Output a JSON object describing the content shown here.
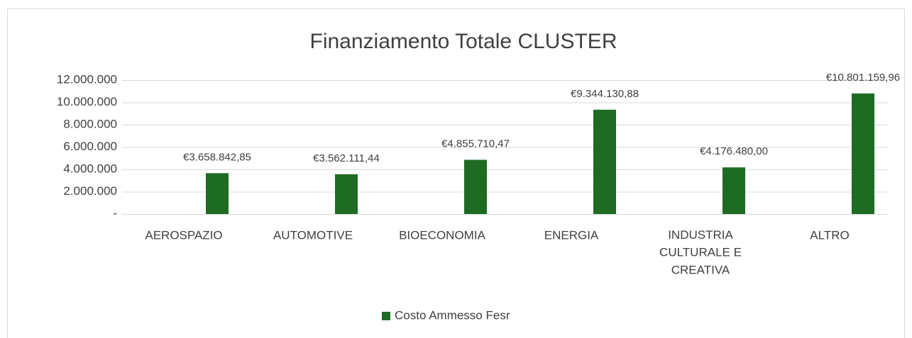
{
  "chart_data": {
    "type": "bar",
    "title": "Finanziamento Totale CLUSTER",
    "categories": [
      "AEROSPAZIO",
      "AUTOMOTIVE",
      "BIOECONOMIA",
      "ENERGIA",
      "INDUSTRIA CULTURALE E CREATIVA",
      "ALTRO"
    ],
    "series": [
      {
        "name": "Costo Ammesso Fesr",
        "color": "#1e6b24",
        "values": [
          3658842.85,
          3562111.44,
          4855710.47,
          9344130.88,
          4176480.0,
          10801159.96
        ],
        "value_labels": [
          "€3.658.842,85",
          "€3.562.111,44",
          "€4.855.710,47",
          "€9.344.130,88",
          "€4.176.480,00",
          "€10.801.159,96"
        ]
      }
    ],
    "ylim": [
      0,
      12000000
    ],
    "yticks": [
      {
        "value": 0,
        "label": "-"
      },
      {
        "value": 2000000,
        "label": "2.000.000"
      },
      {
        "value": 4000000,
        "label": "4.000.000"
      },
      {
        "value": 6000000,
        "label": "6.000.000"
      },
      {
        "value": 8000000,
        "label": "8.000.000"
      },
      {
        "value": 10000000,
        "label": "10.000.000"
      },
      {
        "value": 12000000,
        "label": "12.000.000"
      }
    ],
    "grid": true,
    "legend": "bottom"
  }
}
